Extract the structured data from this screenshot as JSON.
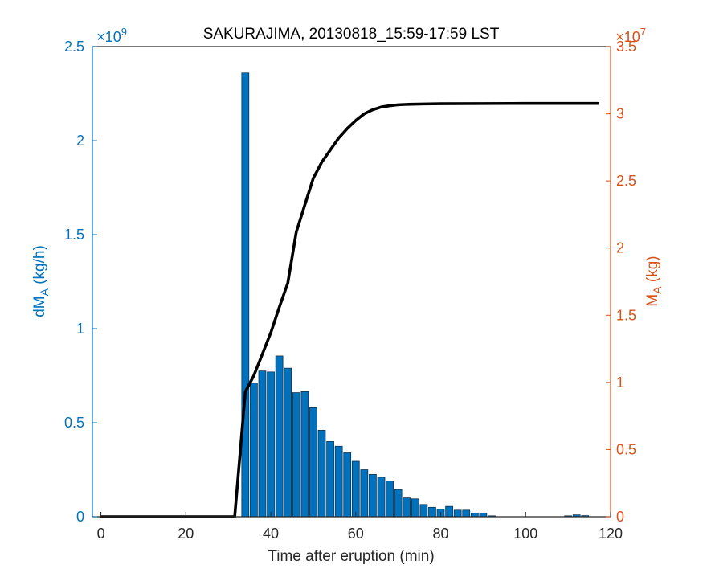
{
  "chart_data": {
    "type": "bar",
    "title": "SAKURAJIMA, 20130818_15:59-17:59 LST",
    "xlabel": "Time after eruption (min)",
    "ylabel_left": {
      "base": "dM",
      "sub": "A",
      "unit": " (kg/h)"
    },
    "ylabel_right": {
      "base": "M",
      "sub": "A",
      "unit": " (kg)"
    },
    "x_ticks": [
      "0",
      "20",
      "40",
      "60",
      "80",
      "100",
      "120"
    ],
    "y_left_ticks": [
      "0",
      "0.5",
      "1",
      "1.5",
      "2",
      "2.5"
    ],
    "y_right_ticks": [
      "0",
      "0.5",
      "1",
      "1.5",
      "2",
      "2.5",
      "3",
      "3.5"
    ],
    "y_left_exponent": {
      "base": "×10",
      "exp": "9"
    },
    "y_right_exponent": {
      "base": "×10",
      "exp": "7"
    },
    "xlim": [
      -2,
      120
    ],
    "ylim_left": [
      0,
      2500000000.0
    ],
    "ylim_right": [
      0,
      35000000.0
    ],
    "colors": {
      "bars": "#0072BD",
      "left_axis": "#0072BD",
      "right_axis": "#D95319",
      "line": "#000000"
    },
    "series": [
      {
        "axis": "left",
        "type": "bar",
        "x": [
          34,
          36,
          38,
          40,
          42,
          44,
          46,
          48,
          50,
          52,
          54,
          56,
          58,
          60,
          62,
          64,
          66,
          68,
          70,
          72,
          74,
          76,
          78,
          80,
          82,
          84,
          86,
          88,
          90,
          92,
          110,
          112,
          114
        ],
        "values": [
          2360000000.0,
          710000000.0,
          775000000.0,
          770000000.0,
          855000000.0,
          790000000.0,
          660000000.0,
          665000000.0,
          580000000.0,
          460000000.0,
          400000000.0,
          375000000.0,
          340000000.0,
          295000000.0,
          250000000.0,
          225000000.0,
          210000000.0,
          190000000.0,
          145000000.0,
          100000000.0,
          95000000.0,
          65000000.0,
          50000000.0,
          40000000.0,
          55000000.0,
          35000000.0,
          35000000.0,
          20000000.0,
          20000000.0,
          5000000.0,
          5000000.0,
          10000000.0,
          6000000.0
        ]
      },
      {
        "axis": "right",
        "type": "line",
        "x": [
          0,
          31.5,
          34,
          36,
          38,
          40,
          42,
          44,
          46,
          48,
          50,
          52,
          54,
          56,
          58,
          60,
          62,
          64,
          66,
          68,
          70,
          72,
          76,
          80,
          90,
          100,
          110,
          117
        ],
        "values": [
          0,
          0,
          9300000.0,
          10500000.0,
          12100000.0,
          13700000.0,
          15600000.0,
          17400000.0,
          21200000.0,
          23200000.0,
          25200000.0,
          26400000.0,
          27300000.0,
          28200000.0,
          28900000.0,
          29500000.0,
          30000000.0,
          30300000.0,
          30500000.0,
          30600000.0,
          30670000.0,
          30700000.0,
          30730000.0,
          30750000.0,
          30760000.0,
          30770000.0,
          30770000.0,
          30770000.0
        ]
      }
    ],
    "grid": false,
    "legend": "none"
  }
}
